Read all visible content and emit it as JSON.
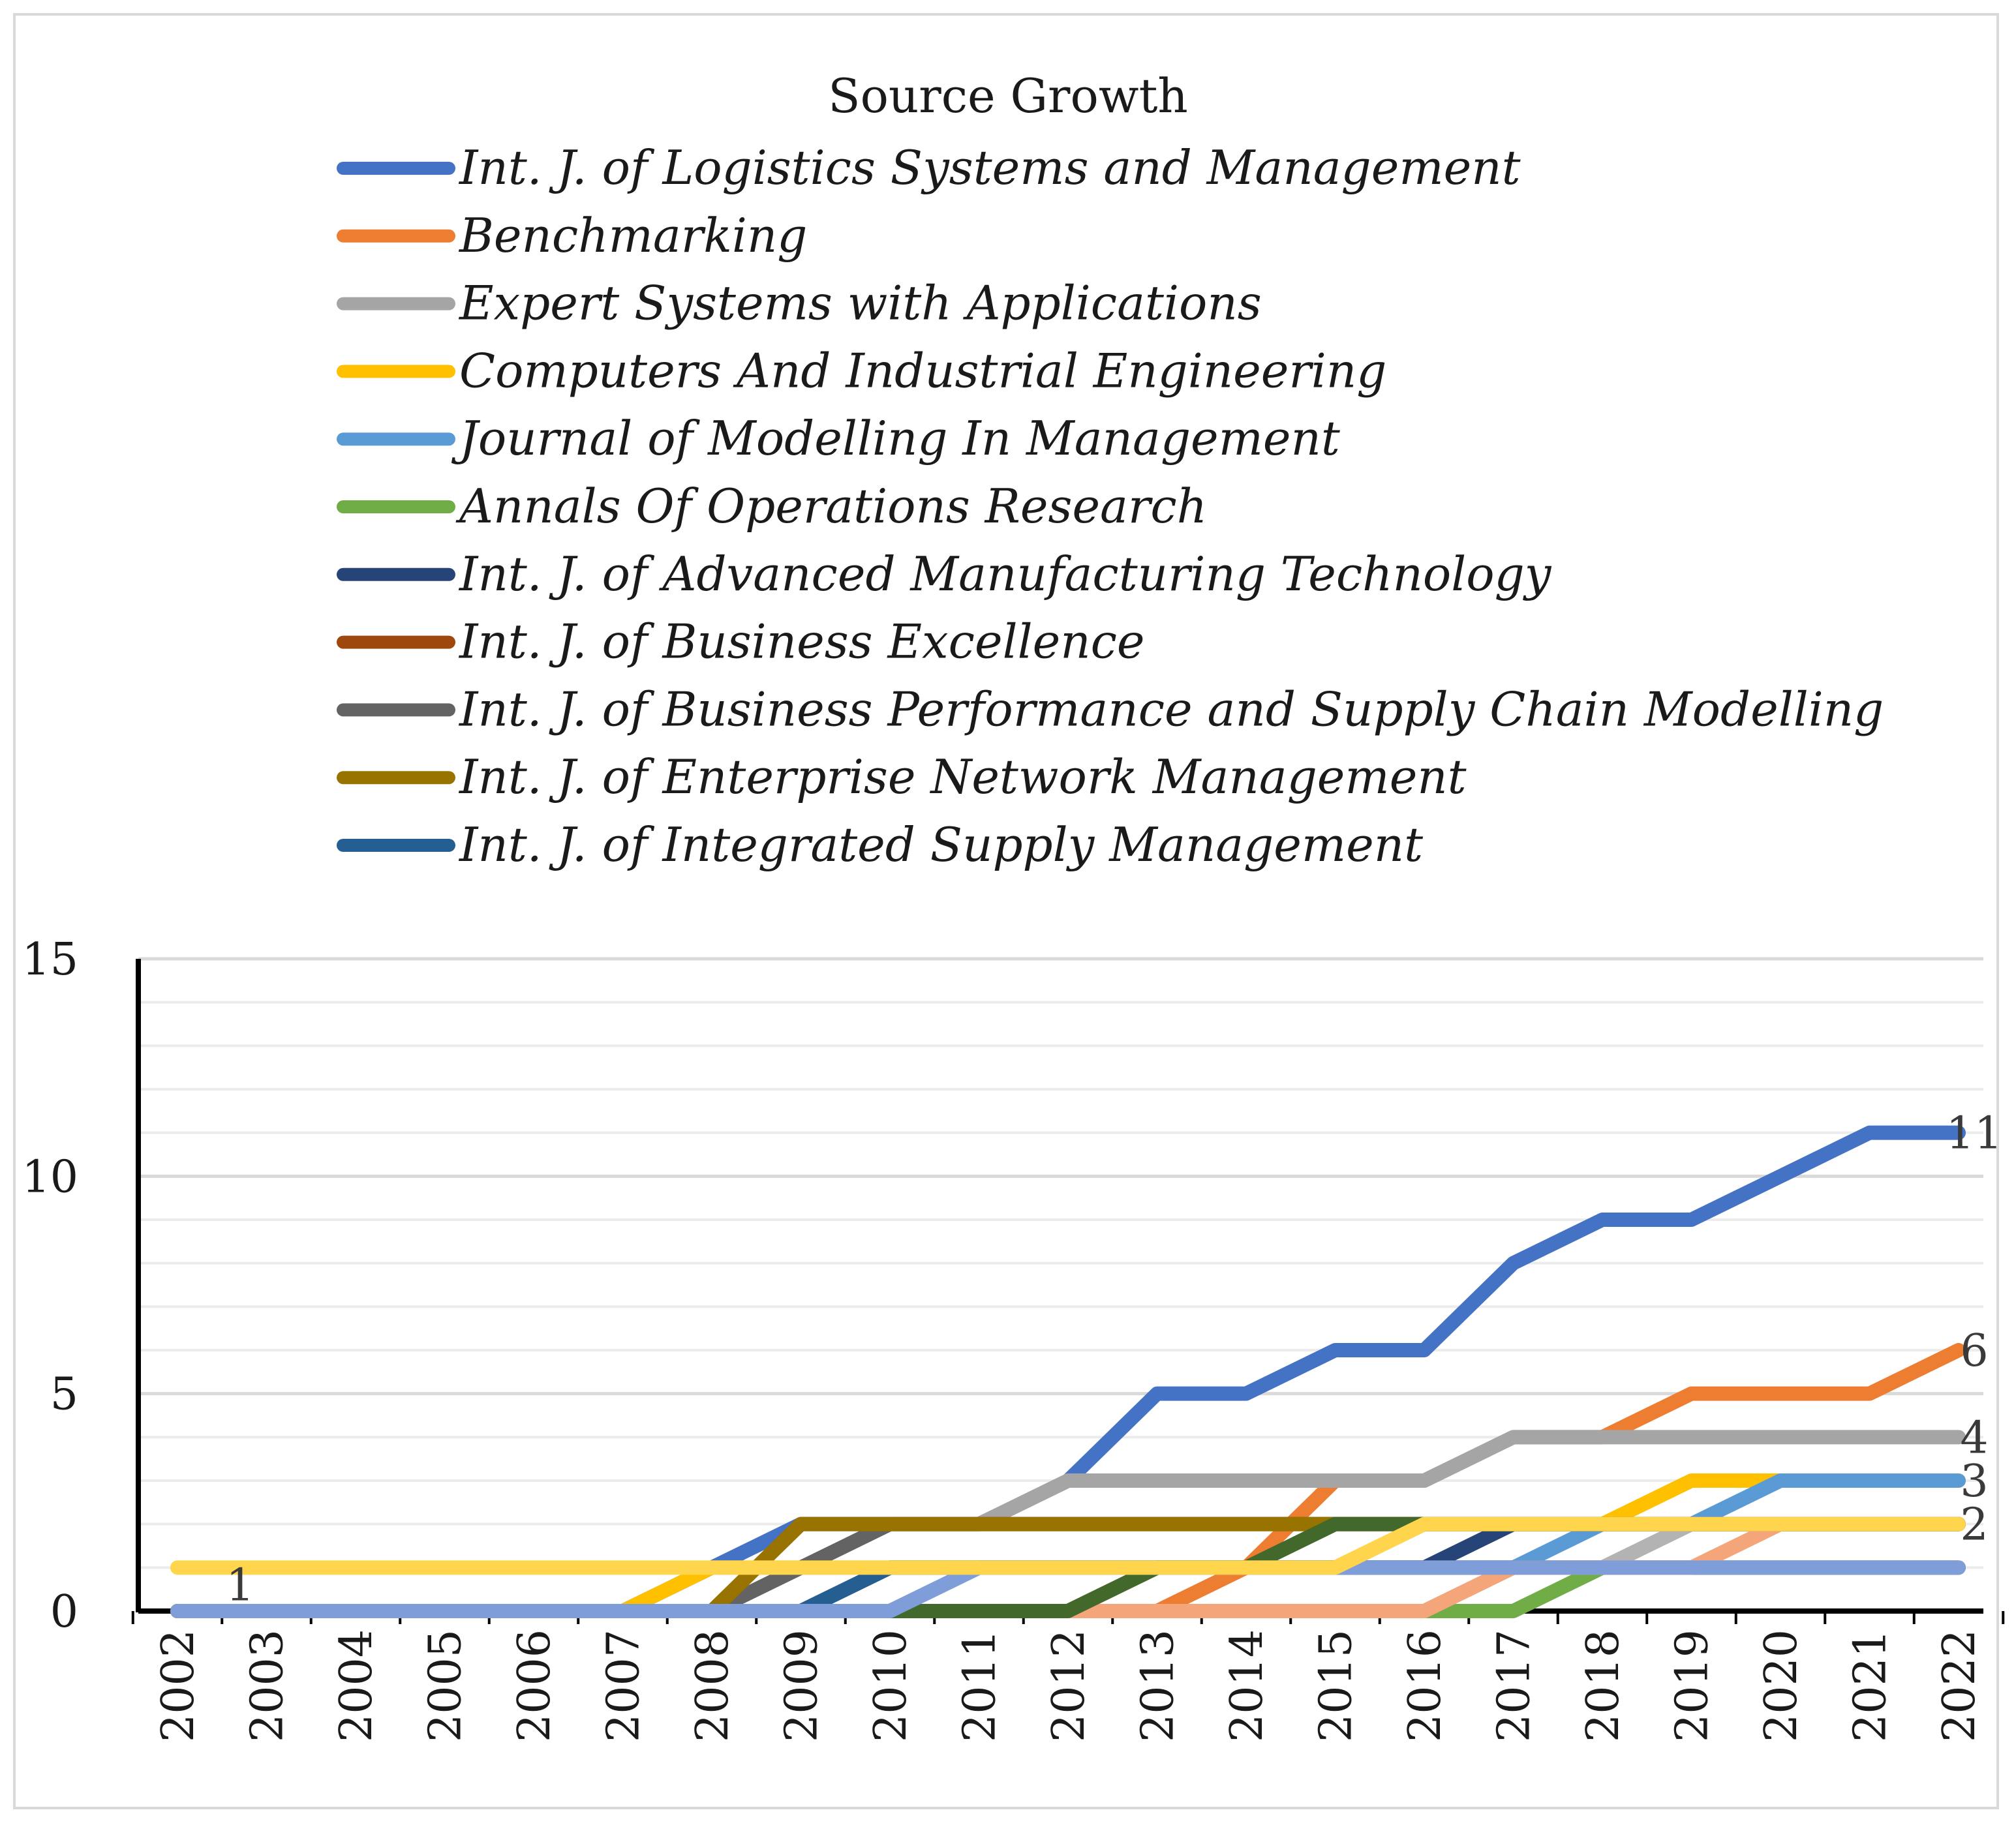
{
  "chart_data": {
    "type": "line",
    "title": "Source Growth",
    "xlabel": "",
    "ylabel": "",
    "ylim": [
      0,
      15
    ],
    "yticks": [
      0,
      5,
      10,
      15
    ],
    "grid": true,
    "legend_position": "top",
    "x": [
      "2002",
      "2003",
      "2004",
      "2005",
      "2006",
      "2007",
      "2008",
      "2009",
      "2010",
      "2011",
      "2012",
      "2013",
      "2014",
      "2015",
      "2016",
      "2017",
      "2018",
      "2019",
      "2020",
      "2021",
      "2022"
    ],
    "series": [
      {
        "name": "Int. J. of Logistics Systems and Management",
        "color": "#4472c4",
        "values": [
          0,
          0,
          0,
          0,
          0,
          0,
          1,
          2,
          2,
          2,
          3,
          5,
          5,
          6,
          6,
          8,
          9,
          9,
          10,
          11,
          11
        ],
        "end_label": "11"
      },
      {
        "name": "Benchmarking",
        "color": "#ed7d31",
        "values": [
          0,
          0,
          0,
          0,
          0,
          0,
          0,
          0,
          0,
          0,
          0,
          0,
          1,
          3,
          3,
          4,
          4,
          5,
          5,
          5,
          6
        ],
        "end_label": "6"
      },
      {
        "name": "Expert Systems with Applications",
        "color": "#a5a5a5",
        "values": [
          0,
          0,
          0,
          0,
          0,
          0,
          0,
          1,
          2,
          2,
          3,
          3,
          3,
          3,
          3,
          4,
          4,
          4,
          4,
          4,
          4
        ],
        "end_label": "4"
      },
      {
        "name": "Computers And Industrial Engineering",
        "color": "#ffc000",
        "values": [
          0,
          0,
          0,
          0,
          0,
          0,
          1,
          1,
          1,
          1,
          1,
          1,
          1,
          1,
          2,
          2,
          2,
          3,
          3,
          3,
          3
        ],
        "end_label": ""
      },
      {
        "name": "Journal of Modelling In Management",
        "color": "#5b9bd5",
        "values": [
          0,
          0,
          0,
          0,
          0,
          0,
          0,
          0,
          0,
          1,
          1,
          1,
          1,
          1,
          1,
          1,
          2,
          2,
          3,
          3,
          3
        ],
        "end_label": "3"
      },
      {
        "name": "Annals Of Operations Research",
        "color": "#70ad47",
        "values": [
          0,
          0,
          0,
          0,
          0,
          0,
          0,
          0,
          0,
          0,
          0,
          0,
          0,
          0,
          0,
          0,
          1,
          2,
          2,
          2,
          2
        ],
        "end_label": ""
      },
      {
        "name": "Int. J. of Advanced Manufacturing Technology",
        "color": "#264478",
        "values": [
          0,
          0,
          0,
          0,
          0,
          0,
          0,
          0,
          1,
          1,
          1,
          1,
          1,
          1,
          1,
          2,
          2,
          2,
          2,
          2,
          2
        ],
        "end_label": ""
      },
      {
        "name": "Int. J. of Business Excellence",
        "color": "#9e480e",
        "values": [
          0,
          0,
          0,
          0,
          0,
          0,
          0,
          0,
          0,
          0,
          0,
          1,
          1,
          1,
          1,
          1,
          1,
          1,
          1,
          1,
          1
        ],
        "end_label": ""
      },
      {
        "name": "Int. J. of Business Performance and Supply Chain Modelling",
        "color": "#636363",
        "values": [
          0,
          0,
          0,
          0,
          0,
          0,
          0,
          1,
          2,
          2,
          2,
          2,
          2,
          2,
          2,
          2,
          2,
          2,
          2,
          2,
          2
        ],
        "end_label": ""
      },
      {
        "name": "Int. J. of Enterprise Network Management",
        "color": "#997300",
        "values": [
          0,
          0,
          0,
          0,
          0,
          0,
          0,
          2,
          2,
          2,
          2,
          2,
          2,
          2,
          2,
          2,
          2,
          2,
          2,
          2,
          2
        ],
        "end_label": ""
      },
      {
        "name": "Int. J. of Integrated Supply Management",
        "color": "#255e91",
        "values": [
          0,
          0,
          0,
          0,
          0,
          0,
          0,
          0,
          1,
          1,
          1,
          1,
          1,
          1,
          1,
          1,
          1,
          1,
          1,
          1,
          1
        ],
        "end_label": ""
      },
      {
        "name": "",
        "color": "#b3b3b3",
        "legend": false,
        "values": [
          0,
          0,
          0,
          0,
          0,
          0,
          0,
          0,
          0,
          0,
          0,
          0,
          0,
          0,
          0,
          1,
          1,
          2,
          2,
          2,
          2
        ],
        "end_label": ""
      },
      {
        "name": "",
        "color": "#f4a57a",
        "legend": false,
        "values": [
          0,
          0,
          0,
          0,
          0,
          0,
          0,
          0,
          0,
          0,
          0,
          0,
          0,
          0,
          0,
          1,
          1,
          1,
          2,
          2,
          2
        ],
        "end_label": ""
      },
      {
        "name": "",
        "color": "#43682b",
        "legend": false,
        "values": [
          0,
          0,
          0,
          0,
          0,
          0,
          0,
          0,
          0,
          0,
          0,
          1,
          1,
          2,
          2,
          2,
          2,
          2,
          2,
          2,
          2
        ],
        "end_label": ""
      },
      {
        "name": "",
        "color": "#7f9ed9",
        "legend": false,
        "values": [
          0,
          0,
          0,
          0,
          0,
          0,
          0,
          0,
          0,
          1,
          1,
          1,
          1,
          1,
          1,
          1,
          1,
          1,
          1,
          1,
          1
        ],
        "end_label": ""
      },
      {
        "name": "",
        "color": "#ffd54d",
        "legend": false,
        "values": [
          1,
          1,
          1,
          1,
          1,
          1,
          1,
          1,
          1,
          1,
          1,
          1,
          1,
          1,
          2,
          2,
          2,
          2,
          2,
          2,
          2
        ],
        "start_label": "1",
        "end_label": "2"
      }
    ]
  }
}
